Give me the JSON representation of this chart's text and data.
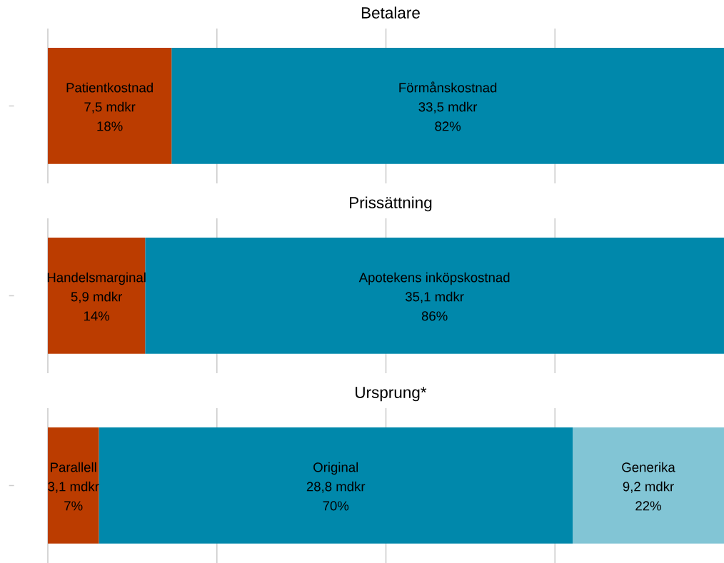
{
  "chart_data": [
    {
      "type": "bar",
      "title": "Betalare",
      "orientation": "horizontal",
      "stacked": true,
      "categories": [
        null
      ],
      "series": [
        {
          "name": "Patientkostnad",
          "color": "#bb3c00",
          "values": [
            7.5
          ],
          "value_labels": [
            "7,5 mdkr"
          ]
        },
        {
          "name": "Förmånskostnad",
          "color": "#0088ab",
          "values": [
            33.5
          ],
          "value_labels": [
            "33,5 mdkr"
          ]
        }
      ],
      "annotations": [
        "18%",
        "82%"
      ],
      "grid": "x"
    },
    {
      "type": "bar",
      "title": "Prissättning",
      "orientation": "horizontal",
      "stacked": true,
      "categories": [
        null
      ],
      "series": [
        {
          "name": "Handelsmarginal",
          "color": "#bb3c00",
          "values": [
            5.9
          ],
          "value_labels": [
            "5,9 mdkr"
          ]
        },
        {
          "name": "Apotekens inköpskostnad",
          "color": "#0088ab",
          "values": [
            35.1
          ],
          "value_labels": [
            "35,1 mdkr"
          ]
        }
      ],
      "annotations": [
        "14%",
        "86%"
      ],
      "grid": "x"
    },
    {
      "type": "bar",
      "title": "Ursprung*",
      "orientation": "horizontal",
      "stacked": true,
      "categories": [
        null
      ],
      "series": [
        {
          "name": "Parallell",
          "color": "#bb3c00",
          "values": [
            3.1
          ],
          "value_labels": [
            "3,1 mdkr"
          ]
        },
        {
          "name": "Original",
          "color": "#0088ab",
          "values": [
            28.8
          ],
          "value_labels": [
            "28,8 mdkr"
          ]
        },
        {
          "name": "Generika",
          "color": "#82c5d5",
          "values": [
            9.2
          ],
          "value_labels": [
            "9,2 mdkr"
          ]
        }
      ],
      "annotations": [
        "7%",
        "70%",
        "22%"
      ],
      "grid": "x"
    }
  ]
}
